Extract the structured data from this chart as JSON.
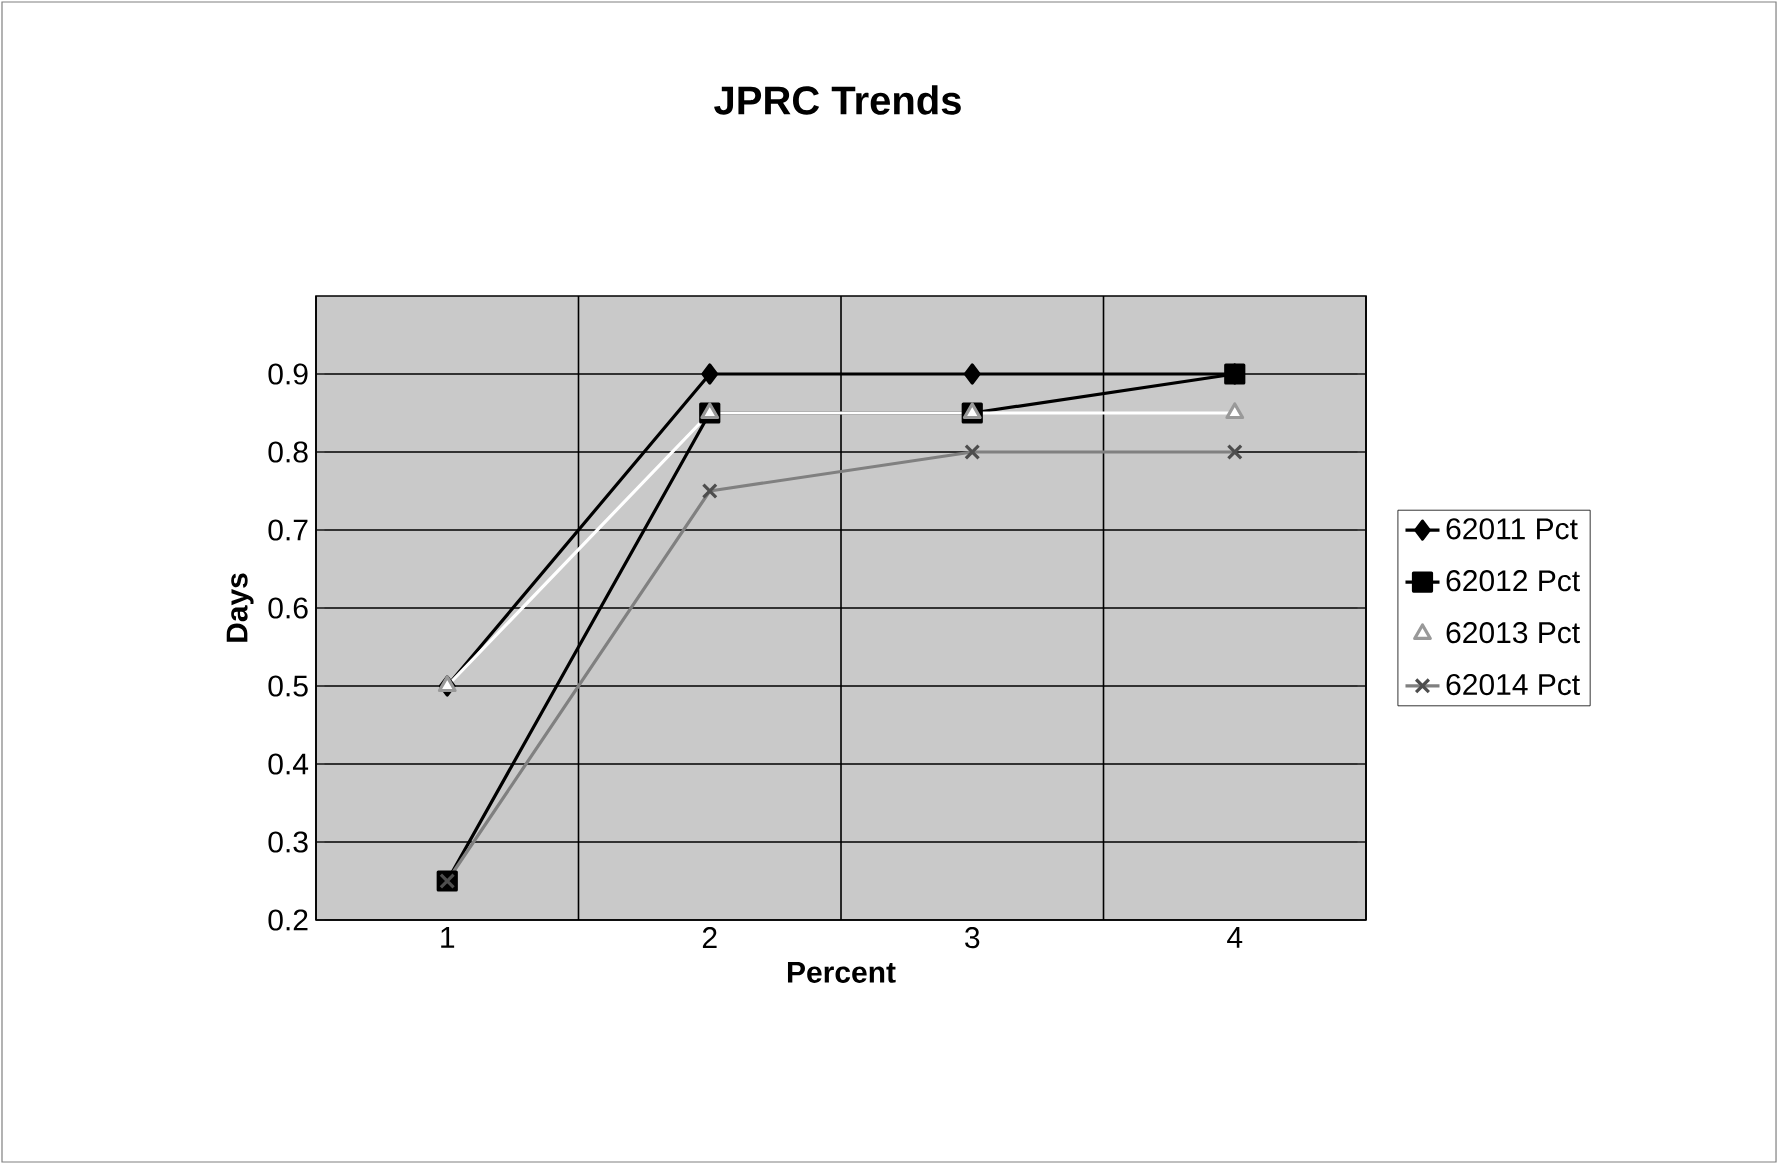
{
  "chart_data": {
    "type": "line",
    "title": "JPRC Trends",
    "xlabel": "Percent",
    "ylabel": "Days",
    "categories": [
      "1",
      "2",
      "3",
      "4"
    ],
    "series": [
      {
        "name": "62011 Pct",
        "color": "#000000",
        "marker": "diamond",
        "values": [
          0.5,
          0.9,
          0.9,
          0.9
        ]
      },
      {
        "name": "62012 Pct",
        "color": "#000000",
        "marker": "square",
        "values": [
          0.25,
          0.85,
          0.85,
          0.9
        ]
      },
      {
        "name": "62013 Pct",
        "color": "#ffffff",
        "marker": "triangle",
        "values": [
          0.5,
          0.85,
          0.85,
          0.85
        ]
      },
      {
        "name": "62014 Pct",
        "color": "#808080",
        "marker": "cross",
        "values": [
          0.25,
          0.75,
          0.8,
          0.8
        ]
      }
    ],
    "ylim": [
      0.2,
      1.0
    ],
    "yticks": [
      0.2,
      0.3,
      0.4,
      0.5,
      0.6,
      0.7,
      0.8,
      0.9
    ],
    "grid": true,
    "legend": "right"
  }
}
